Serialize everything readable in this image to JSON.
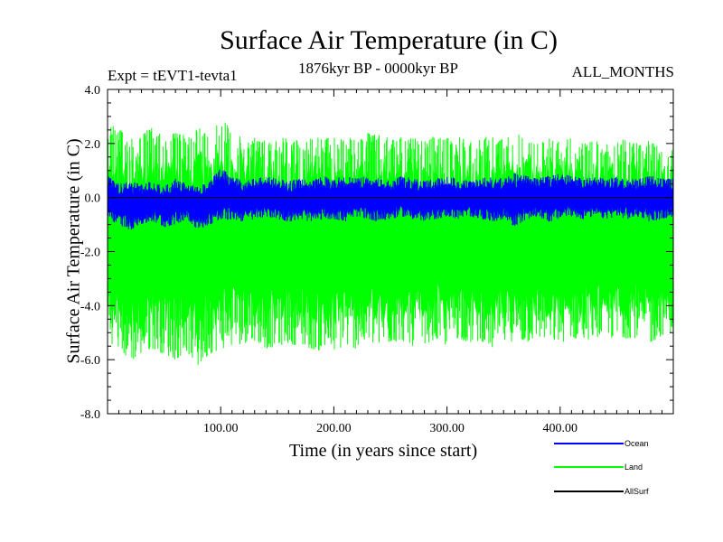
{
  "chart_data": {
    "type": "line",
    "title": "Surface Air Temperature (in C)",
    "subtitle_left": "Expt = tEVT1-tevta1",
    "subtitle_center": "1876kyr BP - 0000kyr BP",
    "subtitle_right": "ALL_MONTHS",
    "xlabel": "Time (in years since start)",
    "ylabel": "Surface Air Temperature (in C)",
    "xlim": [
      0,
      500
    ],
    "ylim": [
      -8.0,
      4.0
    ],
    "x_ticks": [
      100,
      200,
      300,
      400
    ],
    "x_tick_labels": [
      "100.00",
      "200.00",
      "300.00",
      "400.00"
    ],
    "y_ticks": [
      4.0,
      2.0,
      0.0,
      -2.0,
      -4.0,
      -6.0,
      -8.0
    ],
    "y_tick_labels": [
      "4.0",
      "2.0",
      "0.0",
      "-2.0",
      "-4.0",
      "-6.0",
      "-8.0"
    ],
    "series": [
      {
        "name": "Land",
        "color": "#00ff00",
        "envelope": {
          "x": [
            0,
            10,
            20,
            30,
            40,
            50,
            60,
            70,
            80,
            90,
            100,
            110,
            120,
            130,
            140,
            150,
            160,
            170,
            180,
            190,
            200,
            210,
            220,
            230,
            240,
            250,
            260,
            270,
            280,
            290,
            300,
            310,
            320,
            330,
            340,
            350,
            360,
            370,
            380,
            390,
            400,
            410,
            420,
            430,
            440,
            450,
            460,
            470,
            480,
            490,
            500
          ],
          "upper": [
            2.8,
            2.5,
            2.4,
            2.4,
            2.6,
            2.3,
            2.4,
            2.3,
            2.7,
            2.3,
            3.1,
            2.4,
            2.2,
            2.3,
            2.1,
            2.3,
            2.2,
            2.1,
            2.3,
            2.2,
            2.2,
            2.3,
            2.1,
            2.4,
            2.3,
            2.2,
            2.3,
            2.2,
            2.1,
            2.3,
            2.2,
            2.3,
            2.1,
            2.2,
            2.3,
            2.2,
            2.4,
            2.2,
            2.0,
            2.2,
            2.1,
            2.2,
            2.0,
            2.1,
            2.0,
            2.2,
            2.1,
            2.0,
            2.2,
            2.1,
            2.0
          ],
          "lower": [
            -5.3,
            -5.6,
            -6.1,
            -5.8,
            -5.6,
            -5.8,
            -6.0,
            -5.7,
            -6.3,
            -5.8,
            -5.6,
            -5.5,
            -5.4,
            -5.3,
            -5.6,
            -5.5,
            -5.4,
            -5.5,
            -5.6,
            -5.7,
            -5.7,
            -5.5,
            -5.6,
            -5.4,
            -5.5,
            -5.4,
            -5.3,
            -5.5,
            -5.4,
            -5.3,
            -5.5,
            -5.2,
            -5.4,
            -5.3,
            -5.6,
            -5.4,
            -5.3,
            -5.4,
            -5.2,
            -5.3,
            -5.4,
            -5.2,
            -5.3,
            -5.2,
            -5.1,
            -5.3,
            -5.2,
            -5.2,
            -5.4,
            -5.1,
            -5.0
          ]
        }
      },
      {
        "name": "Ocean",
        "color": "#0000ff",
        "envelope": {
          "x": [
            0,
            10,
            20,
            30,
            40,
            50,
            60,
            70,
            80,
            90,
            100,
            110,
            120,
            130,
            140,
            150,
            160,
            170,
            180,
            190,
            200,
            210,
            220,
            230,
            240,
            250,
            260,
            270,
            280,
            290,
            300,
            310,
            320,
            330,
            340,
            350,
            360,
            370,
            380,
            390,
            400,
            410,
            420,
            430,
            440,
            450,
            460,
            470,
            480,
            490,
            500
          ],
          "upper": [
            0.8,
            0.5,
            0.6,
            0.5,
            0.6,
            0.4,
            0.7,
            0.5,
            0.4,
            0.6,
            1.1,
            0.8,
            0.6,
            0.7,
            0.8,
            0.7,
            0.6,
            0.7,
            0.6,
            0.8,
            0.7,
            0.8,
            0.7,
            0.8,
            0.7,
            0.6,
            0.8,
            0.7,
            0.6,
            0.7,
            0.8,
            0.7,
            0.6,
            0.7,
            0.8,
            0.7,
            0.9,
            0.8,
            0.7,
            0.8,
            0.9,
            0.8,
            0.7,
            0.8,
            0.7,
            0.8,
            0.7,
            0.7,
            0.8,
            0.7,
            0.7
          ],
          "lower": [
            -0.8,
            -1.0,
            -1.2,
            -1.0,
            -0.9,
            -1.1,
            -1.0,
            -0.8,
            -1.2,
            -1.0,
            -0.9,
            -0.8,
            -0.9,
            -0.8,
            -0.7,
            -0.8,
            -0.9,
            -0.8,
            -0.9,
            -0.8,
            -0.8,
            -0.9,
            -0.7,
            -0.8,
            -0.9,
            -0.8,
            -0.7,
            -0.8,
            -0.9,
            -0.8,
            -0.7,
            -0.8,
            -0.7,
            -0.8,
            -0.9,
            -0.8,
            -1.1,
            -0.8,
            -0.7,
            -0.9,
            -0.8,
            -0.7,
            -0.8,
            -0.7,
            -0.8,
            -0.7,
            -0.8,
            -0.7,
            -0.9,
            -0.8,
            -0.7
          ]
        }
      },
      {
        "name": "AllSurf",
        "color": "#000000",
        "values_constant": 0.0
      }
    ],
    "legend": {
      "placement": "bottom-right",
      "entries": [
        {
          "label": "Ocean",
          "color": "#0000ff"
        },
        {
          "label": "Land",
          "color": "#00ff00"
        },
        {
          "label": "AllSurf",
          "color": "#000000"
        }
      ]
    }
  }
}
